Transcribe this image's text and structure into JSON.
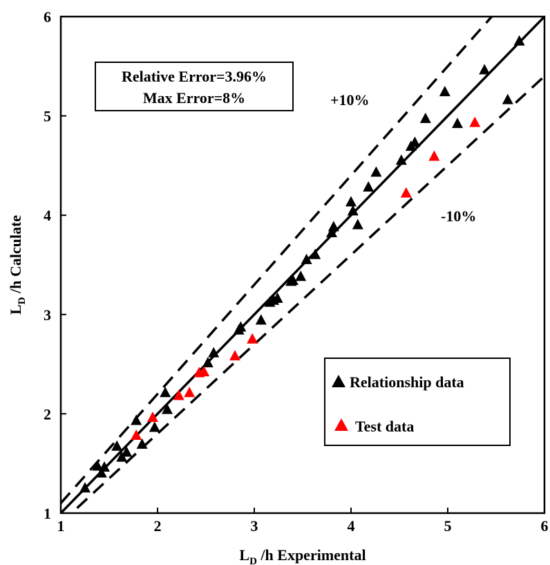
{
  "chart_data": {
    "type": "scatter",
    "xlabel": {
      "main": "L",
      "sub": "D",
      "rest": " /h Experimental"
    },
    "ylabel": {
      "main": "L",
      "sub": "D",
      "rest": " /h Calculate"
    },
    "xlim": [
      1,
      6
    ],
    "ylim": [
      1,
      6
    ],
    "xticks": [
      "1",
      "2",
      "3",
      "4",
      "5",
      "6"
    ],
    "yticks": [
      "1",
      "2",
      "3",
      "4",
      "5",
      "6"
    ],
    "grid": false,
    "legend_position": "lower-right",
    "error_box": {
      "line1": "Relative Error=3.96%",
      "line2": "Max Error=8%"
    },
    "annotations": {
      "plus": "+10%",
      "minus": "-10%"
    },
    "lines": [
      {
        "id": "identity",
        "style": "solid",
        "slope": 1.0
      },
      {
        "id": "plus10",
        "style": "dashed",
        "slope": 1.1
      },
      {
        "id": "minus10",
        "style": "dashed",
        "slope": 0.9
      }
    ],
    "series": [
      {
        "name": "Relationship data",
        "color": "#000000",
        "marker": "triangle",
        "points": [
          [
            1.25,
            1.25
          ],
          [
            1.38,
            1.47
          ],
          [
            1.42,
            1.4
          ],
          [
            1.45,
            1.46
          ],
          [
            1.58,
            1.67
          ],
          [
            1.63,
            1.56
          ],
          [
            1.68,
            1.61
          ],
          [
            1.78,
            1.93
          ],
          [
            1.84,
            1.69
          ],
          [
            1.97,
            1.86
          ],
          [
            2.08,
            2.21
          ],
          [
            2.1,
            2.04
          ],
          [
            2.52,
            2.51
          ],
          [
            2.58,
            2.61
          ],
          [
            2.84,
            2.84
          ],
          [
            2.86,
            2.87
          ],
          [
            3.07,
            2.94
          ],
          [
            3.16,
            3.12
          ],
          [
            3.2,
            3.14
          ],
          [
            3.24,
            3.16
          ],
          [
            3.38,
            3.33
          ],
          [
            3.4,
            3.34
          ],
          [
            3.48,
            3.38
          ],
          [
            3.54,
            3.55
          ],
          [
            3.63,
            3.6
          ],
          [
            3.8,
            3.82
          ],
          [
            3.82,
            3.88
          ],
          [
            4.0,
            4.13
          ],
          [
            4.02,
            4.04
          ],
          [
            4.07,
            3.9
          ],
          [
            4.18,
            4.28
          ],
          [
            4.26,
            4.43
          ],
          [
            4.52,
            4.55
          ],
          [
            4.62,
            4.69
          ],
          [
            4.66,
            4.73
          ],
          [
            4.77,
            4.97
          ],
          [
            4.97,
            5.24
          ],
          [
            5.1,
            4.92
          ],
          [
            5.38,
            5.46
          ],
          [
            5.62,
            5.16
          ],
          [
            5.74,
            5.75
          ]
        ]
      },
      {
        "name": "Test data",
        "color": "#ff0000",
        "marker": "triangle",
        "points": [
          [
            1.78,
            1.78
          ],
          [
            1.95,
            1.96
          ],
          [
            2.22,
            2.18
          ],
          [
            2.33,
            2.21
          ],
          [
            2.43,
            2.41
          ],
          [
            2.48,
            2.42
          ],
          [
            2.8,
            2.58
          ],
          [
            2.98,
            2.75
          ],
          [
            4.57,
            4.22
          ],
          [
            4.86,
            4.59
          ],
          [
            5.28,
            4.93
          ]
        ]
      }
    ]
  }
}
